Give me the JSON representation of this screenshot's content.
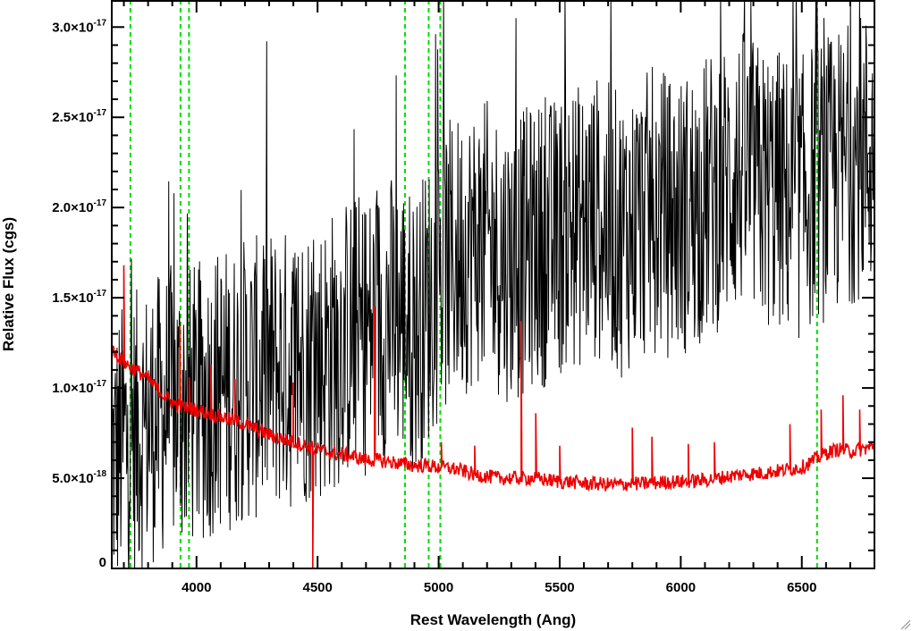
{
  "chart_data": {
    "type": "line",
    "xlabel": "Rest Wavelength (Ang)",
    "ylabel": "Relative Flux (cgs)",
    "xlim": [
      3650,
      6800
    ],
    "ylim": [
      0,
      3.15e-17
    ],
    "x_ticks": [
      {
        "value": 4000,
        "label": "4000"
      },
      {
        "value": 4500,
        "label": "4500"
      },
      {
        "value": 5000,
        "label": "5000"
      },
      {
        "value": 5500,
        "label": "5500"
      },
      {
        "value": 6000,
        "label": "6000"
      },
      {
        "value": 6500,
        "label": "6500"
      }
    ],
    "y_ticks": [
      {
        "value": 0,
        "mant": "0",
        "exp": ""
      },
      {
        "value": 5e-18,
        "mant": "5.0×10",
        "exp": "-18"
      },
      {
        "value": 1e-17,
        "mant": "1.0×10",
        "exp": "-17"
      },
      {
        "value": 1.5e-17,
        "mant": "1.5×10",
        "exp": "-17"
      },
      {
        "value": 2e-17,
        "mant": "2.0×10",
        "exp": "-17"
      },
      {
        "value": 2.5e-17,
        "mant": "2.5×10",
        "exp": "-17"
      },
      {
        "value": 3e-17,
        "mant": "3.0×10",
        "exp": "-17"
      }
    ],
    "reference_lines": {
      "color": "#00dd00",
      "style": "dashed",
      "x": [
        3727,
        3934,
        3969,
        4861,
        4959,
        5007,
        6563
      ]
    },
    "series": [
      {
        "color": "#000000",
        "x": [
          3660,
          3700,
          3750,
          3800,
          3850,
          3900,
          3950,
          4000,
          4050,
          4100,
          4150,
          4200,
          4250,
          4300,
          4350,
          4400,
          4450,
          4500,
          4550,
          4600,
          4650,
          4700,
          4750,
          4800,
          4850,
          4900,
          4950,
          5000,
          5050,
          5100,
          5150,
          5200,
          5250,
          5300,
          5350,
          5400,
          5450,
          5500,
          5550,
          5600,
          5650,
          5700,
          5750,
          5800,
          5850,
          5900,
          5950,
          6000,
          6050,
          6100,
          6150,
          6200,
          6250,
          6300,
          6350,
          6400,
          6450,
          6500,
          6550,
          6600,
          6650,
          6700,
          6750,
          6800
        ],
        "y": [
          6e-18,
          7e-18,
          7.5e-18,
          8e-18,
          8.5e-18,
          9e-18,
          9e-18,
          9e-18,
          9.5e-18,
          1e-17,
          1e-17,
          1.05e-17,
          1.05e-17,
          1.1e-17,
          1.1e-17,
          1.1e-17,
          1.15e-17,
          1.15e-17,
          1.2e-17,
          1.25e-17,
          1.3e-17,
          1.3e-17,
          1.35e-17,
          1.4e-17,
          1.4e-17,
          1.3e-17,
          1.45e-17,
          1.6e-17,
          1.7e-17,
          1.75e-17,
          1.8e-17,
          1.8e-17,
          1.75e-17,
          1.7e-17,
          1.75e-17,
          1.8e-17,
          1.8e-17,
          1.85e-17,
          1.9e-17,
          1.9e-17,
          1.95e-17,
          1.9e-17,
          1.85e-17,
          1.9e-17,
          1.95e-17,
          2e-17,
          1.95e-17,
          1.95e-17,
          2e-17,
          2.05e-17,
          2.1e-17,
          2.15e-17,
          2.2e-17,
          2.15e-17,
          2.1e-17,
          2.1e-17,
          2.05e-17,
          2.05e-17,
          2.15e-17,
          2.15e-17,
          2.2e-17,
          2.25e-17,
          2.3e-17,
          2.3e-17
        ],
        "noise_amplitude": 8e-18
      },
      {
        "color": "#ee0000",
        "x": [
          3660,
          3700,
          3750,
          3800,
          3850,
          3900,
          3950,
          4000,
          4050,
          4100,
          4150,
          4200,
          4250,
          4300,
          4350,
          4400,
          4450,
          4500,
          4550,
          4600,
          4650,
          4700,
          4750,
          4800,
          4850,
          4900,
          4950,
          5000,
          5050,
          5100,
          5150,
          5200,
          5250,
          5300,
          5350,
          5400,
          5450,
          5500,
          5550,
          5600,
          5650,
          5700,
          5750,
          5800,
          5850,
          5900,
          5950,
          6000,
          6050,
          6100,
          6150,
          6200,
          6250,
          6300,
          6350,
          6400,
          6450,
          6500,
          6550,
          6600,
          6650,
          6700,
          6750,
          6800
        ],
        "y": [
          1.2e-17,
          1.14e-17,
          1.1e-17,
          1.05e-17,
          9.8e-18,
          9.2e-18,
          8.9e-18,
          8.8e-18,
          8.6e-18,
          8.4e-18,
          8.2e-18,
          8e-18,
          7.7e-18,
          7.4e-18,
          7.2e-18,
          7e-18,
          6.8e-18,
          6.6e-18,
          6.4e-18,
          6.3e-18,
          6.2e-18,
          6e-18,
          6e-18,
          5.9e-18,
          5.8e-18,
          5.7e-18,
          5.7e-18,
          5.6e-18,
          5.55e-18,
          5.4e-18,
          5.2e-18,
          5.1e-18,
          5e-18,
          5e-18,
          5e-18,
          5e-18,
          4.9e-18,
          4.8e-18,
          4.8e-18,
          4.7e-18,
          4.7e-18,
          4.65e-18,
          4.65e-18,
          4.7e-18,
          4.7e-18,
          4.75e-18,
          4.8e-18,
          4.8e-18,
          4.85e-18,
          4.9e-18,
          5e-18,
          5.1e-18,
          5.2e-18,
          5.25e-18,
          5.3e-18,
          5.4e-18,
          5.5e-18,
          5.6e-18,
          6e-18,
          6.4e-18,
          6.6e-18,
          6.5e-18,
          6.6e-18,
          6.8e-18
        ],
        "noise_amplitude": 4e-19,
        "spikes": [
          {
            "x": 3700,
            "y": 1.68e-17
          },
          {
            "x": 3930,
            "y": 1.35e-17
          },
          {
            "x": 3970,
            "y": 1.06e-17
          },
          {
            "x": 4060,
            "y": 1.13e-17
          },
          {
            "x": 4160,
            "y": 1.05e-17
          },
          {
            "x": 4400,
            "y": 1.03e-17
          },
          {
            "x": 4480,
            "y": 5e-18
          },
          {
            "x": 4735,
            "y": 1.45e-17
          },
          {
            "x": 5010,
            "y": 7e-18
          },
          {
            "x": 5150,
            "y": 6.8e-18
          },
          {
            "x": 5340,
            "y": 1.37e-17
          },
          {
            "x": 5400,
            "y": 8.6e-18
          },
          {
            "x": 5500,
            "y": 6.8e-18
          },
          {
            "x": 5800,
            "y": 7.8e-18
          },
          {
            "x": 5880,
            "y": 7.3e-18
          },
          {
            "x": 6030,
            "y": 6.9e-18
          },
          {
            "x": 6140,
            "y": 7e-18
          },
          {
            "x": 6450,
            "y": 8e-18
          },
          {
            "x": 6580,
            "y": 8.8e-18
          },
          {
            "x": 6670,
            "y": 9.6e-18
          },
          {
            "x": 6740,
            "y": 8.8e-18
          }
        ],
        "dips": [
          {
            "x": 4480,
            "y": 0
          }
        ]
      }
    ]
  }
}
